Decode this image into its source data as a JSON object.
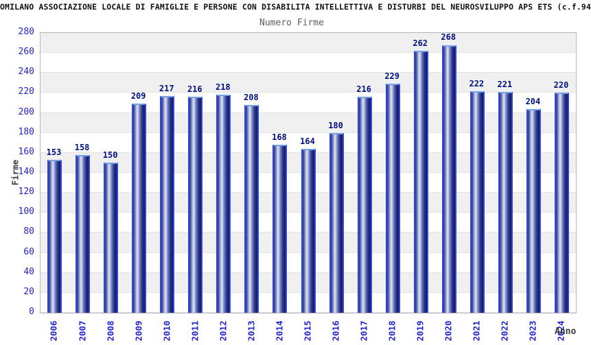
{
  "header": {
    "title": "OMILANO ASSOCIAZIONE LOCALE DI FAMIGLIE E PERSONE CON DISABILITA INTELLETTIVA E DISTURBI DEL NEUROSVILUPPO APS ETS (c.f.94"
  },
  "chart_data": {
    "type": "bar",
    "title": "Numero Firme",
    "xlabel": "Anno",
    "ylabel": "Firme",
    "categories": [
      "2006",
      "2007",
      "2008",
      "2009",
      "2010",
      "2011",
      "2012",
      "2013",
      "2014",
      "2015",
      "2016",
      "2017",
      "2018",
      "2019",
      "2020",
      "2021",
      "2022",
      "2023",
      "2024"
    ],
    "values": [
      153,
      158,
      150,
      209,
      217,
      216,
      218,
      208,
      168,
      164,
      180,
      216,
      229,
      262,
      268,
      222,
      221,
      204,
      220
    ],
    "ylim": [
      0,
      280
    ],
    "ytick_step": 20,
    "grid": "horizontal-bands-alternating",
    "legend": "none",
    "colors": {
      "bar_fill_dark": "#1a2178",
      "bar_fill_light": "#e2e6f4",
      "bar_outline": "#3246e0",
      "bar_top_cap": "#76a0e4",
      "value_label": "#00107d",
      "tick_label": "#2323cd",
      "axis_title": "#3a3a3a",
      "subtitle": "#5f5f5f",
      "band_gray": "#f0f0f0",
      "plot_border": "#b6b6b6"
    }
  }
}
